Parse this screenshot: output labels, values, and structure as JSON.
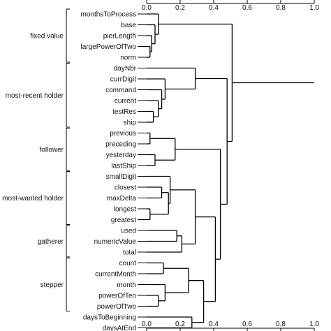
{
  "chart_data": {
    "type": "dendrogram",
    "xlim": [
      0.0,
      1.0
    ],
    "ticks": [
      "0.0",
      "0.2",
      "0.4",
      "0.6",
      "0.8",
      "1.0"
    ],
    "tick_values": [
      0.0,
      0.2,
      0.4,
      0.6,
      0.8,
      1.0
    ],
    "leaves": [
      "monthsToProcess",
      "base",
      "pierLength",
      "largePowerOfTwo",
      "norm",
      "dayNbr",
      "currDigit",
      "command",
      "current",
      "testRes",
      "ship",
      "previous",
      "preceding",
      "yesterday",
      "lastShip",
      "smallDigit",
      "closest",
      "maxDelta",
      "longest",
      "greatest",
      "used",
      "numericValue",
      "total",
      "count",
      "currentMonth",
      "month",
      "powerOfTen",
      "powerOfTwo",
      "daysToBeginning",
      "daysAtEnd"
    ],
    "groups": [
      {
        "label": "fixed value",
        "first": 0,
        "last": 4
      },
      {
        "label": "most-recent holder",
        "first": 5,
        "last": 10
      },
      {
        "label": "follower",
        "first": 11,
        "last": 14
      },
      {
        "label": "most-wanted holder",
        "first": 15,
        "last": 19
      },
      {
        "label": "gatherer",
        "first": 20,
        "last": 22
      },
      {
        "label": "stepper",
        "first": 23,
        "last": 27
      }
    ],
    "merges": [
      {
        "id": "A1",
        "children": [
          "L3",
          "L4"
        ],
        "height": 0.02
      },
      {
        "id": "A2",
        "children": [
          "L2",
          "A1"
        ],
        "height": 0.03
      },
      {
        "id": "A3",
        "children": [
          "L1",
          "A2"
        ],
        "height": 0.05
      },
      {
        "id": "A4",
        "children": [
          "L0",
          "A3"
        ],
        "height": 0.07
      },
      {
        "id": "B1",
        "children": [
          "L9",
          "L10"
        ],
        "height": 0.04
      },
      {
        "id": "B2",
        "children": [
          "L8",
          "B1"
        ],
        "height": 0.07
      },
      {
        "id": "B3",
        "children": [
          "L7",
          "B2"
        ],
        "height": 0.09
      },
      {
        "id": "B4",
        "children": [
          "L6",
          "B3"
        ],
        "height": 0.11
      },
      {
        "id": "B5",
        "children": [
          "L5",
          "B4"
        ],
        "height": 0.29
      },
      {
        "id": "C1",
        "children": [
          "L11",
          "L12"
        ],
        "height": 0.02
      },
      {
        "id": "C2",
        "children": [
          "L13",
          "L14"
        ],
        "height": 0.05
      },
      {
        "id": "C3",
        "children": [
          "C1",
          "C2"
        ],
        "height": 0.17
      },
      {
        "id": "D1",
        "children": [
          "L18",
          "L19"
        ],
        "height": 0.02
      },
      {
        "id": "D2",
        "children": [
          "L16",
          "L17"
        ],
        "height": 0.09
      },
      {
        "id": "D3",
        "children": [
          "D2",
          "D1"
        ],
        "height": 0.13
      },
      {
        "id": "D4",
        "children": [
          "L15",
          "D3"
        ],
        "height": 0.14
      },
      {
        "id": "E1",
        "children": [
          "L20",
          "L21"
        ],
        "height": 0.18
      },
      {
        "id": "E2",
        "children": [
          "E1",
          "L22"
        ],
        "height": 0.21
      },
      {
        "id": "F1",
        "children": [
          "L23",
          "L24"
        ],
        "height": 0.1
      },
      {
        "id": "F2",
        "children": [
          "L26",
          "L27"
        ],
        "height": 0.07
      },
      {
        "id": "F3",
        "children": [
          "L25",
          "F2"
        ],
        "height": 0.11
      },
      {
        "id": "F4",
        "children": [
          "F1",
          "F3"
        ],
        "height": 0.25
      },
      {
        "id": "G1",
        "children": [
          "L28",
          "L29"
        ],
        "height": 0.27
      },
      {
        "id": "M1",
        "children": [
          "D4",
          "E2"
        ],
        "height": 0.29
      },
      {
        "id": "M2",
        "children": [
          "F4",
          "G1"
        ],
        "height": 0.34
      },
      {
        "id": "M3",
        "children": [
          "M1",
          "M2"
        ],
        "height": 0.41
      },
      {
        "id": "M4",
        "children": [
          "C3",
          "M3"
        ],
        "height": 0.44
      },
      {
        "id": "M5",
        "children": [
          "B5",
          "M4"
        ],
        "height": 0.48
      },
      {
        "id": "M6",
        "children": [
          "A4",
          "M5"
        ],
        "height": 0.51
      }
    ],
    "root": "M6",
    "root_height": 1.0,
    "grid": false
  }
}
